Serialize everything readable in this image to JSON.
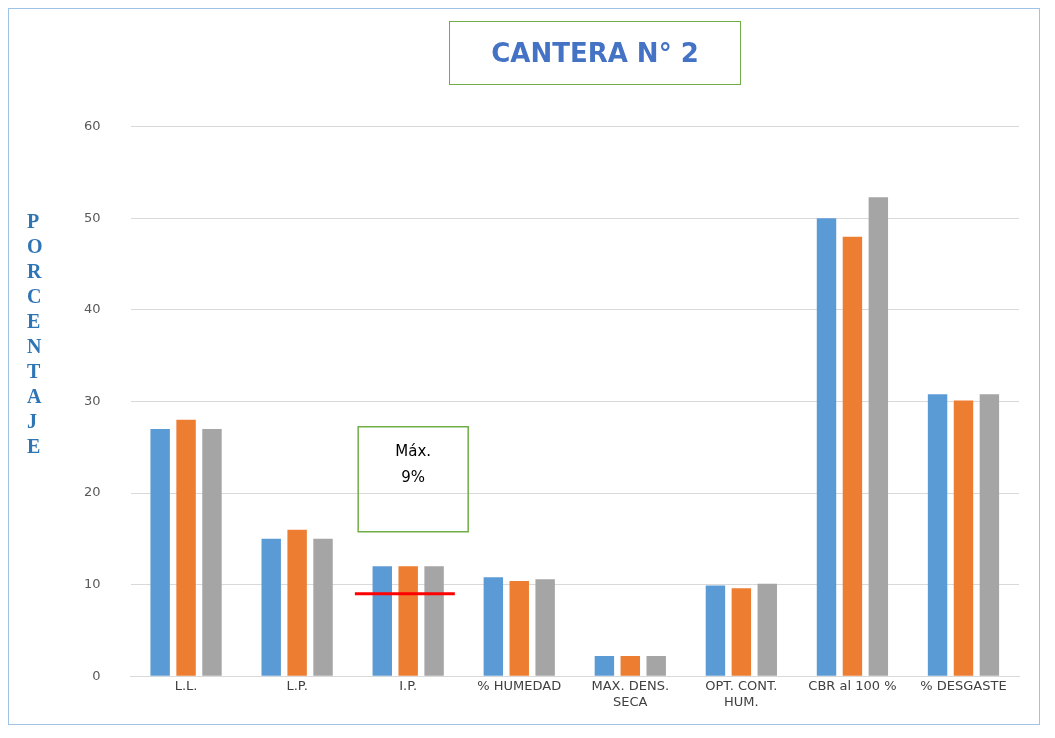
{
  "chart_data": {
    "type": "bar",
    "title": "CANTERA N° 2",
    "ylabel": "PORCENTAJE",
    "categories": [
      "L.L.",
      "L.P.",
      "I.P.",
      "% HUMEDAD",
      "MAX. DENS. SECA",
      "OPT. CONT. HUM.",
      "CBR al 100 %",
      "% DESGASTE"
    ],
    "series": [
      {
        "color": "#5b9bd5",
        "values": [
          27,
          15,
          12,
          10.8,
          2.2,
          9.9,
          50,
          30.8
        ]
      },
      {
        "color": "#ed7d31",
        "values": [
          28,
          16,
          12,
          10.4,
          2.2,
          9.6,
          48,
          30.1
        ]
      },
      {
        "color": "#a5a5a5",
        "values": [
          27,
          15,
          12,
          10.6,
          2.2,
          10.1,
          52.3,
          30.8
        ]
      }
    ],
    "ylim": [
      0,
      60
    ],
    "yticks": [
      0,
      10,
      20,
      30,
      40,
      50,
      60
    ],
    "grid": "y",
    "legend": false,
    "ref_lines": [
      {
        "axis": "y",
        "value": 9,
        "color": "#ff0000"
      }
    ],
    "annotations": [
      "Máx.\n9%"
    ]
  }
}
